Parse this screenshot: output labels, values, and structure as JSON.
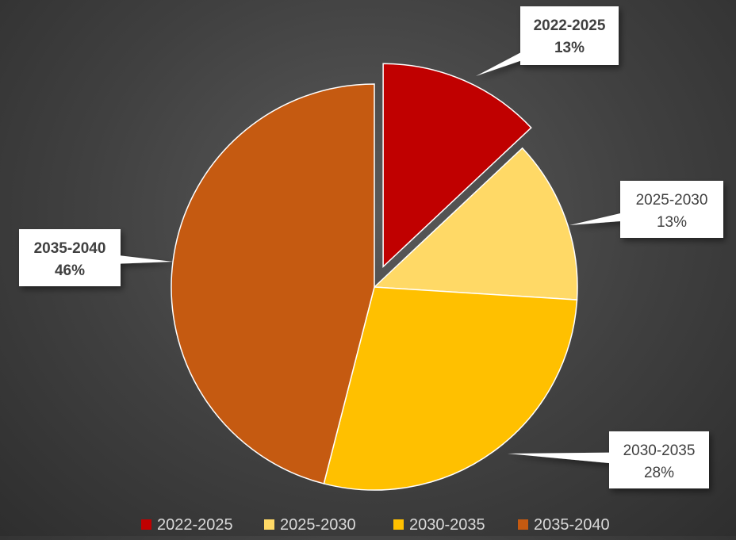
{
  "chart_data": {
    "type": "pie",
    "title": "",
    "categories": [
      "2022-2025",
      "2025-2030",
      "2030-2035",
      "2035-2040"
    ],
    "values": [
      13,
      13,
      28,
      46
    ],
    "value_labels": [
      "13%",
      "13%",
      "28%",
      "46%"
    ],
    "colors": [
      "#C00000",
      "#FFD966",
      "#FFC000",
      "#C55A11"
    ],
    "exploded": [
      true,
      false,
      false,
      false
    ],
    "label_bold": [
      true,
      false,
      false,
      true
    ],
    "legend_position": "bottom",
    "legend": [
      "2022-2025",
      "2025-2030",
      "2030-2035",
      "2035-2040"
    ]
  }
}
